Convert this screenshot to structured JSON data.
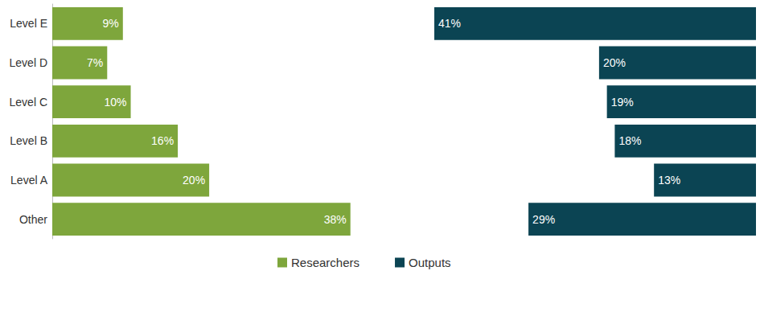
{
  "chart_data": {
    "type": "bar",
    "orientation": "horizontal",
    "categories": [
      "Level E",
      "Level D",
      "Level C",
      "Level B",
      "Level A",
      "Other"
    ],
    "series": [
      {
        "name": "Researchers",
        "color": "#7ea63c",
        "values": [
          9,
          7,
          10,
          16,
          20,
          38
        ],
        "value_labels": [
          "9%",
          "7%",
          "10%",
          "16%",
          "20%",
          "38%"
        ]
      },
      {
        "name": "Outputs",
        "color": "#0b4453",
        "values": [
          41,
          20,
          19,
          18,
          13,
          29
        ],
        "value_labels": [
          "41%",
          "20%",
          "19%",
          "18%",
          "13%",
          "29%"
        ]
      }
    ],
    "xlim": [
      0,
      45
    ],
    "data_labels": true,
    "tick_labels": "y",
    "legend": "bottom"
  }
}
